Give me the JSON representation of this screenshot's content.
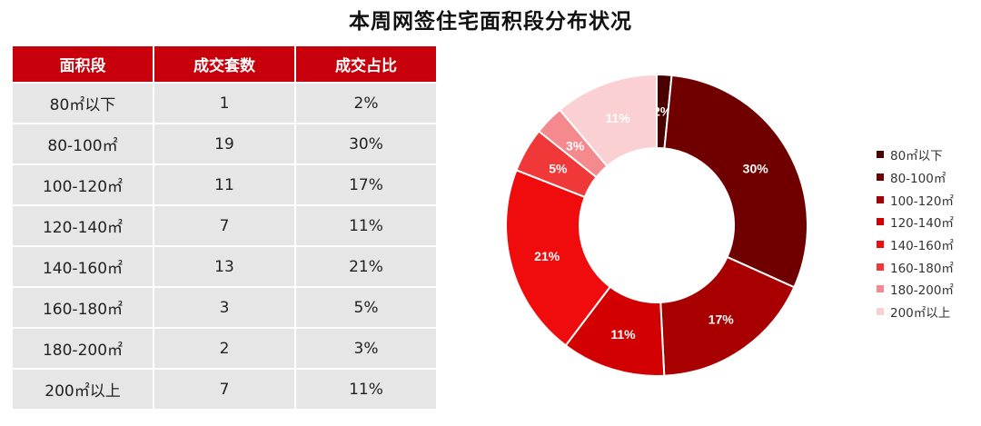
{
  "title": "本周网签住宅面积段分布状况",
  "table": {
    "headers": [
      "面积段",
      "成交套数",
      "成交占比"
    ],
    "rows": [
      [
        "80㎡以下",
        "1",
        "2%"
      ],
      [
        "80-100㎡",
        "19",
        "30%"
      ],
      [
        "100-120㎡",
        "11",
        "17%"
      ],
      [
        "120-140㎡",
        "7",
        "11%"
      ],
      [
        "140-160㎡",
        "13",
        "21%"
      ],
      [
        "160-180㎡",
        "3",
        "5%"
      ],
      [
        "180-200㎡",
        "2",
        "3%"
      ],
      [
        "200㎡以上",
        "7",
        "11%"
      ]
    ]
  },
  "chart_data": {
    "type": "pie",
    "style": "donut",
    "categories": [
      "80㎡以下",
      "80-100㎡",
      "100-120㎡",
      "120-140㎡",
      "140-160㎡",
      "160-180㎡",
      "180-200㎡",
      "200㎡以上"
    ],
    "values": [
      1,
      19,
      11,
      7,
      13,
      3,
      2,
      7
    ],
    "labels": [
      "2%",
      "30%",
      "17%",
      "11%",
      "21%",
      "5%",
      "3%",
      "11%"
    ],
    "colors": [
      "#4a0000",
      "#700000",
      "#a80000",
      "#d20000",
      "#f00c0c",
      "#f03838",
      "#f58a8e",
      "#fbd0d2"
    ],
    "label_colors": [
      "#ffffff",
      "#ffffff",
      "#ffffff",
      "#ffffff",
      "#ffffff",
      "#ffffff",
      "#ffffff",
      "#ffffff"
    ],
    "legend_position": "right"
  }
}
